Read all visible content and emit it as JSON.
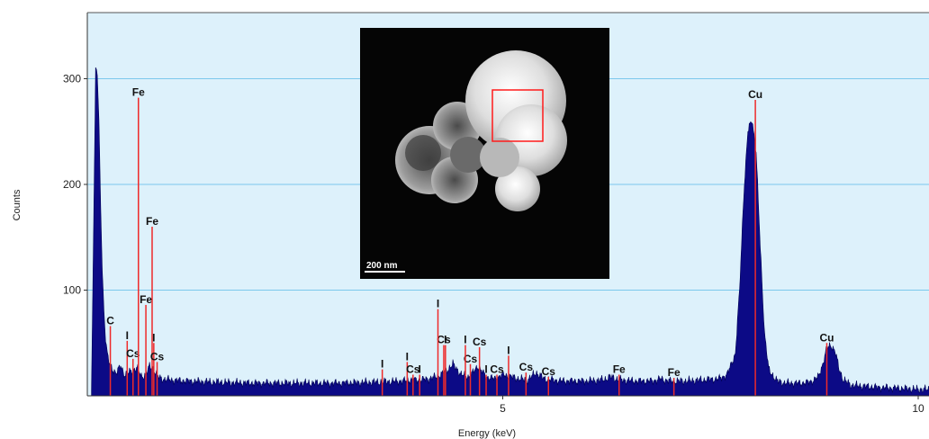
{
  "chart_data": {
    "type": "area",
    "title": "",
    "xlabel": "Energy (keV)",
    "ylabel": "Counts",
    "xlim": [
      0,
      10.2
    ],
    "ylim": [
      0,
      365
    ],
    "x_ticks": [
      5,
      10
    ],
    "y_ticks": [
      100,
      200,
      300
    ],
    "grid": "horizontal",
    "colors": {
      "plot_background": "#ddf1fb",
      "gridline": "#7cc8ec",
      "spectrum_fill": "#0c0a86",
      "marker_line": "#ee2a2a"
    },
    "spectrum": {
      "x": [
        0.05,
        0.1,
        0.12,
        0.14,
        0.16,
        0.18,
        0.2,
        0.22,
        0.24,
        0.26,
        0.28,
        0.3,
        0.35,
        0.4,
        0.45,
        0.5,
        0.55,
        0.6,
        0.65,
        0.7,
        0.75,
        0.8,
        0.85,
        0.9,
        1.0,
        1.2,
        1.5,
        2.0,
        2.5,
        3.0,
        3.5,
        3.8,
        3.9,
        4.0,
        4.1,
        4.2,
        4.3,
        4.4,
        4.5,
        4.6,
        4.7,
        4.8,
        4.9,
        5.0,
        5.1,
        5.2,
        5.3,
        5.4,
        5.5,
        5.6,
        5.7,
        5.8,
        6.0,
        6.2,
        6.3,
        6.4,
        6.6,
        6.8,
        6.9,
        7.0,
        7.2,
        7.4,
        7.6,
        7.7,
        7.8,
        7.85,
        7.9,
        7.95,
        8.0,
        8.05,
        8.1,
        8.15,
        8.2,
        8.3,
        8.4,
        8.5,
        8.6,
        8.7,
        8.8,
        8.85,
        8.9,
        8.95,
        9.0,
        9.05,
        9.1,
        9.2,
        9.5,
        9.8,
        10.0,
        10.2
      ],
      "y": [
        3,
        310,
        305,
        260,
        180,
        120,
        80,
        55,
        40,
        32,
        28,
        25,
        22,
        28,
        20,
        22,
        24,
        27,
        18,
        20,
        28,
        25,
        18,
        16,
        15,
        14,
        13,
        12,
        12,
        12,
        13,
        14,
        15,
        15,
        16,
        18,
        22,
        30,
        20,
        18,
        28,
        18,
        16,
        20,
        18,
        16,
        15,
        22,
        16,
        15,
        14,
        14,
        14,
        15,
        18,
        15,
        14,
        14,
        16,
        14,
        14,
        15,
        16,
        20,
        40,
        100,
        190,
        250,
        262,
        230,
        140,
        60,
        25,
        14,
        12,
        12,
        12,
        13,
        18,
        30,
        45,
        48,
        42,
        25,
        15,
        10,
        8,
        7,
        6,
        6
      ]
    },
    "peaks": [
      {
        "element": "C",
        "energy": 0.277,
        "height": 66
      },
      {
        "element": "I",
        "energy": 0.48,
        "height": 52
      },
      {
        "element": "Cs",
        "energy": 0.55,
        "height": 35
      },
      {
        "element": "Fe",
        "energy": 0.615,
        "height": 282
      },
      {
        "element": "Fe",
        "energy": 0.705,
        "height": 86
      },
      {
        "element": "Fe",
        "energy": 0.78,
        "height": 160
      },
      {
        "element": "I",
        "energy": 0.8,
        "height": 50
      },
      {
        "element": "Cs",
        "energy": 0.84,
        "height": 32
      },
      {
        "element": "I",
        "energy": 3.55,
        "height": 25
      },
      {
        "element": "I",
        "energy": 3.85,
        "height": 32
      },
      {
        "element": "Cs",
        "energy": 3.92,
        "height": 20
      },
      {
        "element": "I",
        "energy": 4.0,
        "height": 20
      },
      {
        "element": "Cs",
        "energy": 4.29,
        "height": 48
      },
      {
        "element": "I",
        "energy": 4.22,
        "height": 82
      },
      {
        "element": "I",
        "energy": 4.31,
        "height": 48
      },
      {
        "element": "Cs",
        "energy": 4.61,
        "height": 30
      },
      {
        "element": "I",
        "energy": 4.55,
        "height": 48
      },
      {
        "element": "Cs",
        "energy": 4.72,
        "height": 46
      },
      {
        "element": "I",
        "energy": 4.8,
        "height": 20
      },
      {
        "element": "Cs",
        "energy": 4.93,
        "height": 20
      },
      {
        "element": "I",
        "energy": 5.07,
        "height": 38
      },
      {
        "element": "Cs",
        "energy": 5.28,
        "height": 22
      },
      {
        "element": "Cs",
        "energy": 5.55,
        "height": 18
      },
      {
        "element": "Fe",
        "energy": 6.4,
        "height": 20
      },
      {
        "element": "Fe",
        "energy": 7.06,
        "height": 17
      },
      {
        "element": "Cu",
        "energy": 8.04,
        "height": 280
      },
      {
        "element": "Cu",
        "energy": 8.9,
        "height": 50
      }
    ]
  },
  "inset": {
    "scale_bar_label": "200 nm"
  }
}
